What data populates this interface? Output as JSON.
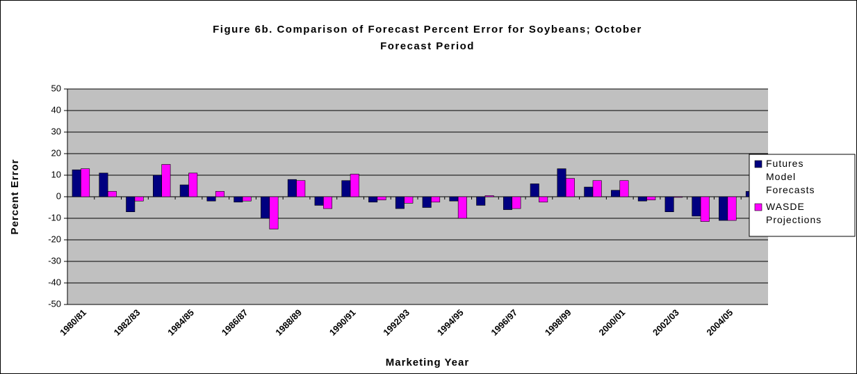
{
  "chart_data": {
    "type": "bar",
    "title": "Figure 6b.  Comparison of Forecast Percent Error for Soybeans;  October",
    "subtitle": "Forecast Period",
    "x_label": "Marketing Year",
    "y_label": "Percent Error",
    "categories": [
      "1980/81",
      null,
      "1982/83",
      null,
      "1984/85",
      null,
      "1986/87",
      null,
      "1988/89",
      null,
      "1990/91",
      null,
      "1992/93",
      null,
      "1994/95",
      null,
      "1996/97",
      null,
      "1998/99",
      null,
      "2000/01",
      null,
      "2002/03",
      null,
      "2004/05",
      null
    ],
    "series": [
      {
        "name": "Futures Model Forecasts",
        "color": "#000080",
        "values": [
          12.5,
          11,
          -7,
          10,
          5.5,
          -2,
          -2.5,
          -10,
          8,
          -4,
          7.5,
          -2.5,
          -5.5,
          -5,
          -2,
          -4,
          -6,
          6,
          13,
          4.5,
          3,
          -2,
          -7,
          -9,
          -11,
          2.5
        ]
      },
      {
        "name": "WASDE Projections",
        "color": "#ff00ff",
        "values": [
          13,
          2.5,
          -2,
          15,
          11,
          2.5,
          -2,
          -15,
          7.5,
          -5.5,
          10.5,
          -1.5,
          -3,
          -2.5,
          -10,
          0.5,
          -5.5,
          -2.5,
          8.5,
          7.5,
          7.5,
          -1.5,
          -0.3,
          -11.5,
          -11,
          -4.5
        ]
      }
    ],
    "ylim": [
      -50,
      50
    ],
    "yticks": [
      -50,
      -40,
      -30,
      -20,
      -10,
      0,
      10,
      20,
      30,
      40,
      50
    ],
    "grid": true,
    "legend": "right"
  }
}
